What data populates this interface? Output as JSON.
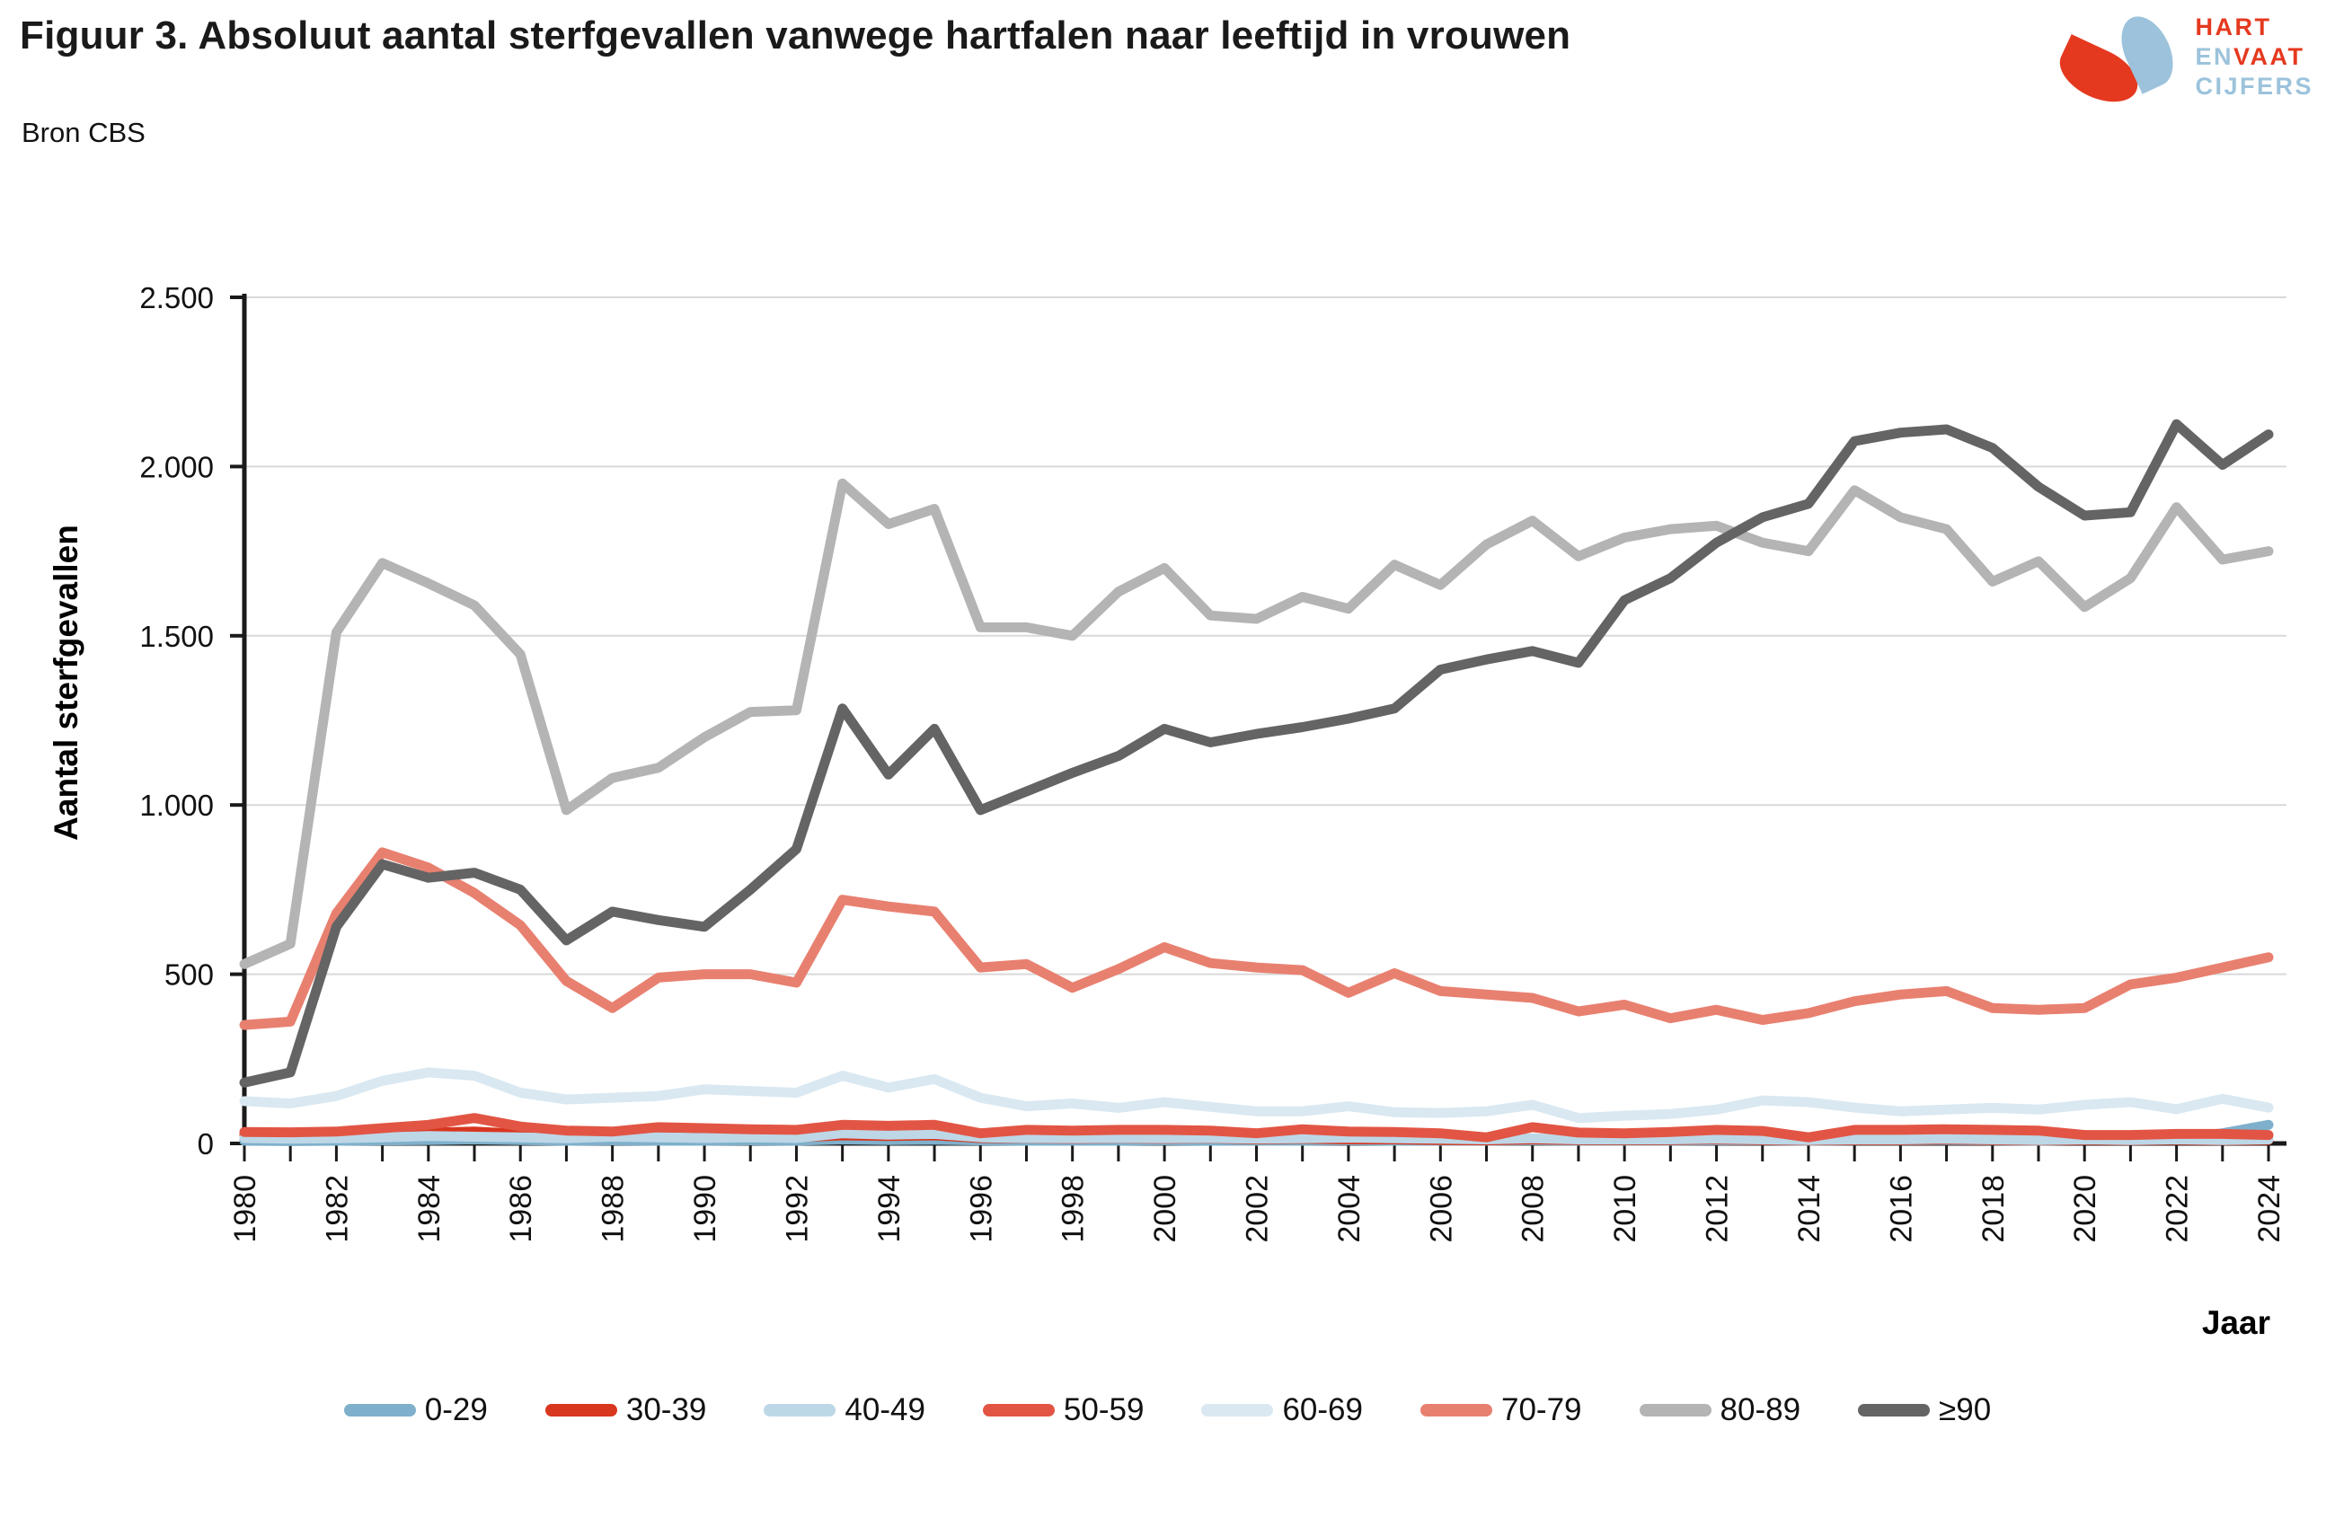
{
  "header": {
    "title": "Figuur 3. Absoluut aantal sterfgevallen vanwege hartfalen naar leeftijd in vrouwen",
    "source": "Bron CBS"
  },
  "logo": {
    "word1": "HART",
    "word2a": "EN",
    "word2b": "VAAT",
    "word3": "CIJFERS",
    "red": "#E5391F",
    "blue": "#9CC3DB"
  },
  "axes": {
    "ylabel": "Aantal sterfgevallen",
    "xlabel": "Jaar"
  },
  "chart_data": {
    "type": "line",
    "title": "Figuur 3. Absoluut aantal sterfgevallen vanwege hartfalen naar leeftijd in vrouwen",
    "xlabel": "Jaar",
    "ylabel": "Aantal sterfgevallen",
    "ylim": [
      0,
      2500
    ],
    "grid": true,
    "legend_position": "bottom",
    "yticks": [
      0,
      500,
      1000,
      1500,
      2000,
      2500
    ],
    "ytick_labels": [
      "0",
      "500",
      "1.000",
      "1.500",
      "2.000",
      "2.500"
    ],
    "xtick_label_step": 2,
    "grid_color": "#d9d9d9",
    "axis_color": "#1a1a1a",
    "years": [
      1980,
      1981,
      1982,
      1983,
      1984,
      1985,
      1986,
      1987,
      1988,
      1989,
      1990,
      1991,
      1992,
      1993,
      1994,
      1995,
      1996,
      1997,
      1998,
      1999,
      2000,
      2001,
      2002,
      2003,
      2004,
      2005,
      2006,
      2007,
      2008,
      2009,
      2010,
      2011,
      2012,
      2013,
      2014,
      2015,
      2016,
      2017,
      2018,
      2019,
      2020,
      2021,
      2022,
      2023,
      2024
    ],
    "series": [
      {
        "name": "0-29",
        "color": "#7FB0CB",
        "values": [
          8,
          7,
          8,
          9,
          10,
          12,
          10,
          8,
          9,
          8,
          8,
          9,
          8,
          12,
          10,
          11,
          9,
          8,
          8,
          8,
          9,
          8,
          8,
          8,
          9,
          8,
          8,
          8,
          9,
          8,
          8,
          8,
          9,
          9,
          8,
          9,
          9,
          10,
          9,
          8,
          10,
          12,
          15,
          30,
          55
        ]
      },
      {
        "name": "30-39",
        "color": "#D8361F",
        "values": [
          25,
          23,
          24,
          28,
          32,
          35,
          28,
          22,
          25,
          22,
          20,
          20,
          18,
          24,
          22,
          24,
          16,
          15,
          14,
          15,
          14,
          15,
          12,
          14,
          12,
          12,
          10,
          9,
          12,
          10,
          10,
          10,
          12,
          10,
          9,
          10,
          10,
          12,
          10,
          9,
          10,
          9,
          10,
          9,
          10
        ]
      },
      {
        "name": "40-49",
        "color": "#BDD7E7",
        "values": [
          16,
          14,
          15,
          18,
          22,
          20,
          18,
          15,
          20,
          18,
          16,
          18,
          16,
          30,
          26,
          28,
          18,
          16,
          15,
          16,
          15,
          16,
          14,
          15,
          17,
          15,
          14,
          12,
          15,
          12,
          12,
          12,
          14,
          12,
          10,
          12,
          12,
          14,
          12,
          10,
          12,
          10,
          12,
          10,
          12
        ]
      },
      {
        "name": "50-59",
        "color": "#E25544",
        "values": [
          34,
          33,
          35,
          45,
          55,
          75,
          50,
          38,
          35,
          48,
          45,
          42,
          40,
          55,
          52,
          55,
          30,
          40,
          38,
          40,
          40,
          38,
          30,
          42,
          35,
          34,
          30,
          18,
          48,
          32,
          30,
          34,
          40,
          37,
          18,
          40,
          40,
          42,
          40,
          38,
          25,
          25,
          28,
          28,
          25
        ]
      },
      {
        "name": "60-69",
        "color": "#D9E8F1",
        "values": [
          125,
          118,
          140,
          185,
          210,
          200,
          150,
          130,
          135,
          140,
          160,
          155,
          150,
          200,
          165,
          190,
          135,
          110,
          118,
          105,
          122,
          108,
          95,
          95,
          110,
          92,
          90,
          95,
          114,
          75,
          82,
          87,
          100,
          127,
          122,
          106,
          95,
          100,
          105,
          100,
          114,
          122,
          101,
          132,
          106
        ]
      },
      {
        "name": "70-79",
        "color": "#E88070",
        "values": [
          350,
          360,
          680,
          860,
          815,
          740,
          645,
          480,
          400,
          490,
          500,
          500,
          475,
          720,
          700,
          685,
          520,
          530,
          460,
          515,
          580,
          533,
          520,
          512,
          445,
          503,
          450,
          440,
          430,
          390,
          410,
          370,
          395,
          365,
          385,
          420,
          440,
          450,
          400,
          395,
          400,
          470,
          490,
          520,
          550
        ]
      },
      {
        "name": "80-89",
        "color": "#B4B4B4",
        "values": [
          530,
          590,
          1510,
          1715,
          1655,
          1590,
          1445,
          985,
          1080,
          1110,
          1200,
          1275,
          1280,
          1950,
          1830,
          1875,
          1525,
          1525,
          1500,
          1630,
          1700,
          1560,
          1550,
          1615,
          1580,
          1710,
          1650,
          1770,
          1840,
          1735,
          1790,
          1815,
          1825,
          1775,
          1750,
          1930,
          1850,
          1815,
          1660,
          1720,
          1585,
          1670,
          1880,
          1725,
          1750
        ]
      },
      {
        "name": "≥90",
        "color": "#646464",
        "values": [
          180,
          210,
          640,
          825,
          785,
          800,
          750,
          600,
          685,
          660,
          640,
          750,
          870,
          1285,
          1090,
          1225,
          985,
          1040,
          1095,
          1145,
          1225,
          1185,
          1210,
          1230,
          1255,
          1285,
          1400,
          1430,
          1455,
          1420,
          1605,
          1670,
          1775,
          1850,
          1890,
          2075,
          2100,
          2110,
          2055,
          1940,
          1855,
          1865,
          2125,
          2005,
          2095
        ]
      }
    ]
  }
}
